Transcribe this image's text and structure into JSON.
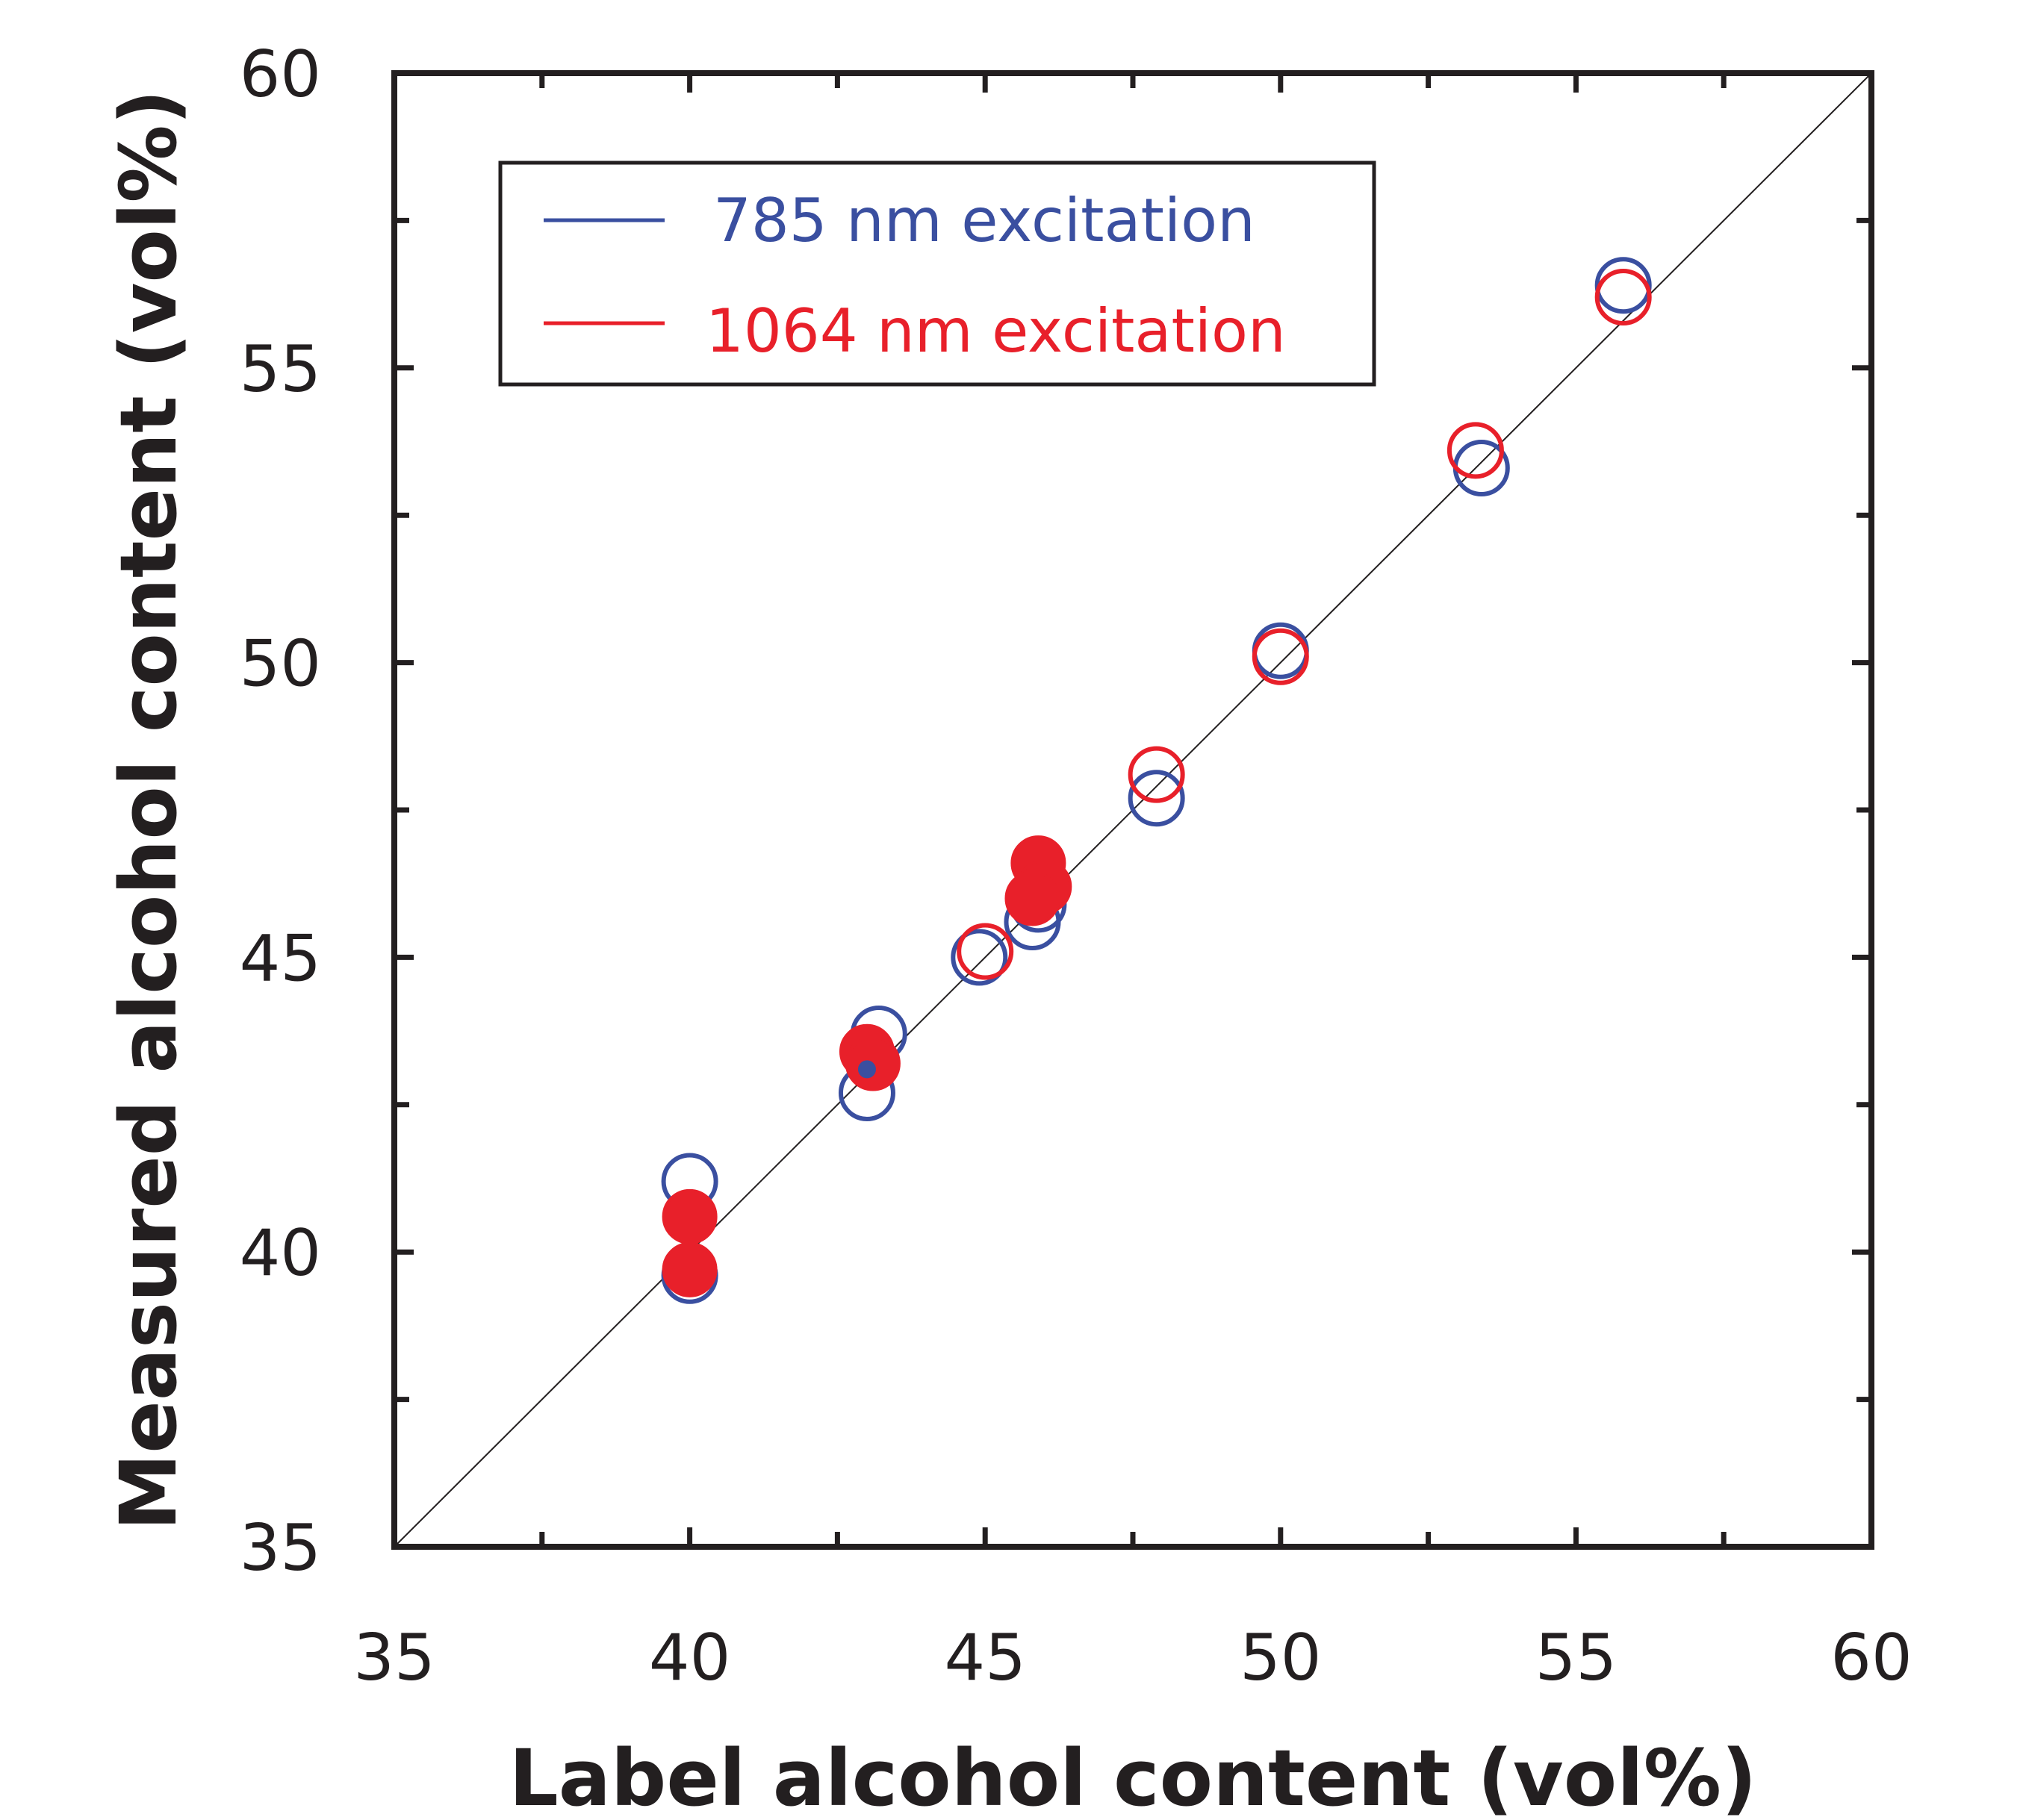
{
  "chart_data": {
    "type": "scatter",
    "title": "",
    "xlabel": "Label alcohol content (vol%)",
    "ylabel": "Measured alcohol content (vol%)",
    "xlim": [
      35,
      60
    ],
    "ylim": [
      35,
      60
    ],
    "x_ticks": [
      "35",
      "40",
      "45",
      "50",
      "55",
      "60"
    ],
    "y_ticks": [
      "35",
      "40",
      "45",
      "50",
      "55",
      "60"
    ],
    "minor_ticks": [
      37.5,
      42.5,
      47.5,
      52.5,
      57.5
    ],
    "reference_line": {
      "type": "identity",
      "from": [
        35,
        35
      ],
      "to": [
        60,
        60
      ],
      "color": "#231f20"
    },
    "legend": {
      "position": "top-left"
    },
    "series": [
      {
        "name": "785 nm excitation",
        "color": "#3a4fa0",
        "open_points": [
          {
            "x": 40.0,
            "y": 41.2
          },
          {
            "x": 40.0,
            "y": 39.6
          },
          {
            "x": 43.0,
            "y": 42.7
          },
          {
            "x": 43.2,
            "y": 43.7
          },
          {
            "x": 44.9,
            "y": 45.0
          },
          {
            "x": 45.8,
            "y": 45.6
          },
          {
            "x": 45.9,
            "y": 45.9
          },
          {
            "x": 47.9,
            "y": 47.7
          },
          {
            "x": 50.0,
            "y": 50.2
          },
          {
            "x": 53.4,
            "y": 53.3
          },
          {
            "x": 55.8,
            "y": 56.4
          }
        ],
        "filled_points": [
          {
            "x": 43.0,
            "y": 43.1
          }
        ]
      },
      {
        "name": "1064 nm excitation",
        "color": "#e8202a",
        "open_points": [
          {
            "x": 45.0,
            "y": 45.1
          },
          {
            "x": 47.9,
            "y": 48.1
          },
          {
            "x": 50.0,
            "y": 50.1
          },
          {
            "x": 53.3,
            "y": 53.6
          },
          {
            "x": 55.8,
            "y": 56.2
          }
        ],
        "filled_points": [
          {
            "x": 40.0,
            "y": 40.6
          },
          {
            "x": 40.0,
            "y": 39.7
          },
          {
            "x": 43.0,
            "y": 43.4
          },
          {
            "x": 43.1,
            "y": 43.2
          },
          {
            "x": 45.9,
            "y": 46.6
          },
          {
            "x": 46.0,
            "y": 46.2
          },
          {
            "x": 45.8,
            "y": 46.0
          }
        ]
      }
    ]
  }
}
